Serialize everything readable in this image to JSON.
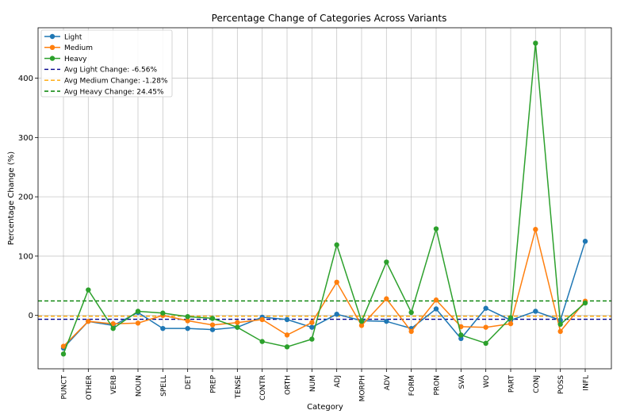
{
  "chart_data": {
    "type": "line",
    "title": "Percentage Change of Categories Across Variants",
    "xlabel": "Category",
    "ylabel": "Percentage Change (%)",
    "categories": [
      "PUNCT",
      "OTHER",
      "VERB",
      "NOUN",
      "SPELL",
      "DET",
      "PREP",
      "TENSE",
      "CONTR",
      "ORTH",
      "NUM",
      "ADJ",
      "MORPH",
      "ADV",
      "FORM",
      "PRON",
      "SVA",
      "WO",
      "PART",
      "CONJ",
      "POSS",
      "INFL"
    ],
    "ylim": [
      -90,
      485
    ],
    "yticks": [
      0,
      100,
      200,
      300,
      400
    ],
    "grid": true,
    "legend_position": "top-left",
    "series": [
      {
        "name": "Light",
        "color": "#1f77b4",
        "values": [
          -55,
          -10,
          -17,
          5,
          -22,
          -22,
          -24,
          -20,
          -3,
          -7,
          -20,
          2,
          -9,
          -10,
          -22,
          11,
          -39,
          12,
          -8,
          7,
          -8,
          125
        ]
      },
      {
        "name": "Medium",
        "color": "#ff7f0e",
        "values": [
          -52,
          -10,
          -14,
          -13,
          0,
          -9,
          -16,
          -12,
          -7,
          -33,
          -12,
          56,
          -17,
          28,
          -27,
          26,
          -19,
          -20,
          -14,
          145,
          -27,
          24
        ]
      },
      {
        "name": "Heavy",
        "color": "#2ca02c",
        "values": [
          -65,
          43,
          -22,
          7,
          4,
          -2,
          -5,
          -20,
          -44,
          -53,
          -40,
          119,
          -10,
          90,
          5,
          146,
          -33,
          -47,
          -4,
          459,
          -15,
          21
        ]
      }
    ],
    "reference_lines": [
      {
        "label": "Avg Light Change: -6.56%",
        "value": -6.56,
        "color": "#00008b"
      },
      {
        "label": "Avg Medium Change: -1.28%",
        "value": -1.28,
        "color": "#ffa500"
      },
      {
        "label": "Avg Heavy Change: 24.45%",
        "value": 24.45,
        "color": "#008000"
      }
    ]
  }
}
